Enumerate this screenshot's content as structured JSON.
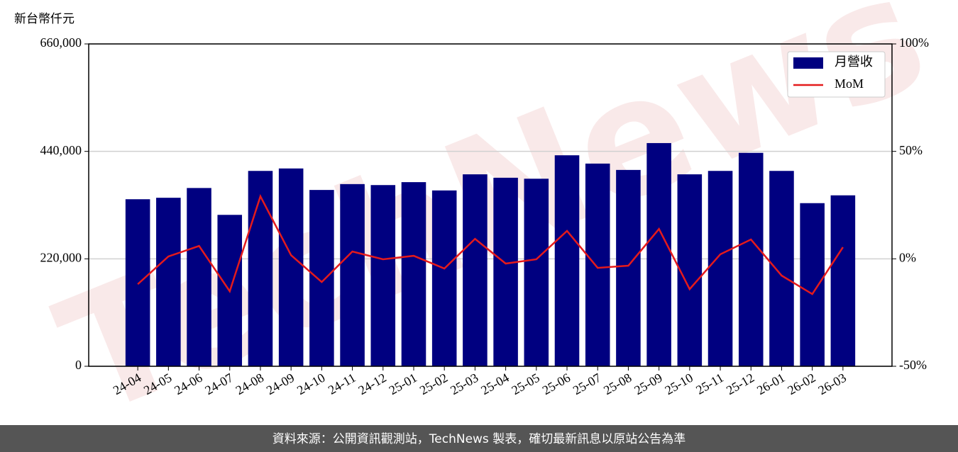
{
  "chart_data": {
    "type": "bar",
    "y_label": "新台幣仟元",
    "watermark": "TechNews",
    "footer": "資料來源：公開資訊觀測站，TechNews 製表，確切最新訊息以原站公告為準",
    "categories": [
      "24-04",
      "24-05",
      "24-06",
      "24-07",
      "24-08",
      "24-09",
      "24-10",
      "24-11",
      "24-12",
      "25-01",
      "25-02",
      "25-03",
      "25-04",
      "25-05",
      "25-06",
      "25-07",
      "25-08",
      "25-09",
      "25-10",
      "25-11",
      "25-12",
      "26-01",
      "26-02",
      "26-03"
    ],
    "series": [
      {
        "name": "月營收",
        "type": "bar",
        "color": "#000080",
        "values": [
          342000,
          345000,
          365000,
          310000,
          400000,
          405000,
          361000,
          373000,
          371000,
          377000,
          360000,
          393000,
          386000,
          384000,
          432000,
          415000,
          402000,
          457000,
          393000,
          400000,
          437000,
          400000,
          334000,
          350000
        ]
      },
      {
        "name": "MoM",
        "type": "line",
        "axis": "y2",
        "color": "#e41a1c",
        "values": [
          -11.8,
          1.1,
          6.0,
          -15.1,
          29.1,
          1.7,
          -10.8,
          3.4,
          -0.2,
          1.4,
          -4.5,
          9.3,
          -2.2,
          -0.2,
          13.0,
          -4.2,
          -3.2,
          13.9,
          -14.1,
          2.1,
          9.0,
          -7.8,
          -16.4,
          5.4
        ]
      }
    ],
    "ylim": [
      0,
      660000
    ],
    "yticks": [
      0,
      {
        "value": 220000,
        "label": "220,000"
      },
      {
        "value": 440000,
        "label": "440,000"
      },
      {
        "value": 660000,
        "label": "660,000"
      }
    ],
    "y2lim": [
      -50,
      100
    ],
    "y2ticks": [
      {
        "value": -50,
        "label": "-50%"
      },
      {
        "value": 0,
        "label": "0%"
      },
      {
        "value": 50,
        "label": "50%"
      },
      {
        "value": 100,
        "label": "100%"
      }
    ],
    "grid": true,
    "legend": "upper right"
  }
}
